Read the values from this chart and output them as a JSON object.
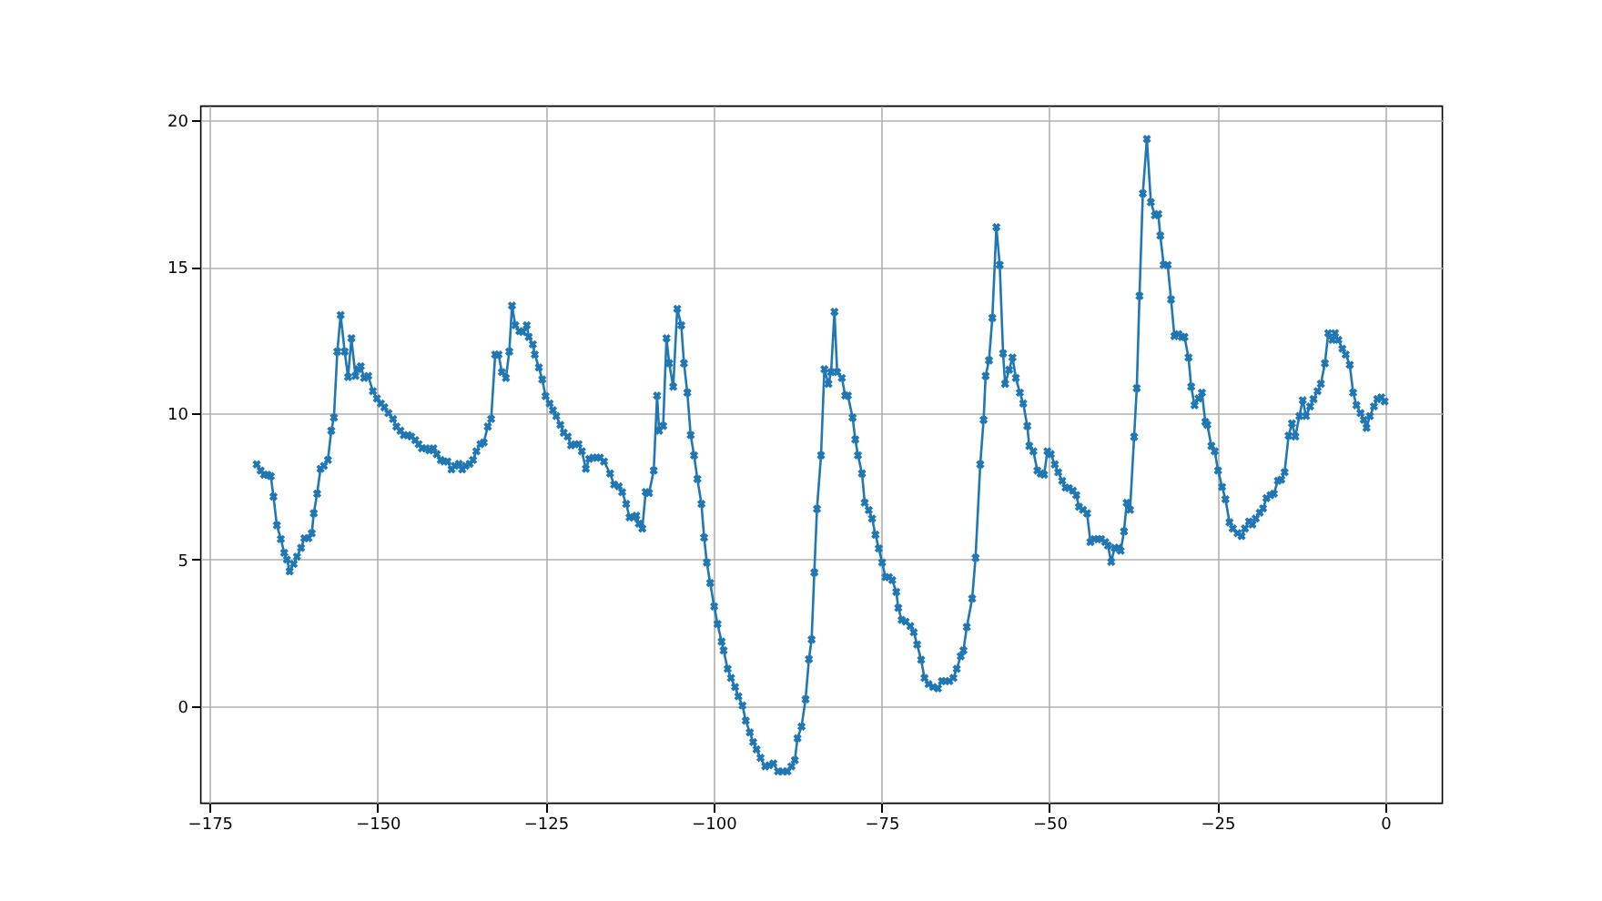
{
  "chart_data": {
    "type": "line",
    "marker": "cross",
    "line_style": "solid",
    "grid": true,
    "xlim": [
      -176.4,
      8.4
    ],
    "ylim": [
      -3.3,
      20.5
    ],
    "xticks": [
      -175,
      -150,
      -125,
      -100,
      -75,
      -50,
      -25,
      0
    ],
    "yticks": [
      0,
      5,
      10,
      15,
      20
    ],
    "series": [
      {
        "color": "#1f77b4",
        "x": [
          -168.0,
          -167.4,
          -166.9,
          -166.4,
          -165.9,
          -165.5,
          -165.0,
          -164.4,
          -163.9,
          -163.5,
          -163.1,
          -162.5,
          -162.0,
          -161.4,
          -160.9,
          -160.3,
          -159.8,
          -159.5,
          -159.0,
          -158.5,
          -158.0,
          -157.4,
          -156.9,
          -156.5,
          -156.0,
          -155.5,
          -154.9,
          -154.4,
          -153.9,
          -153.3,
          -152.9,
          -152.5,
          -152.0,
          -151.4,
          -150.7,
          -150.1,
          -149.5,
          -149.0,
          -148.4,
          -147.7,
          -147.2,
          -146.6,
          -146.1,
          -145.5,
          -145.0,
          -144.4,
          -143.9,
          -143.4,
          -142.8,
          -142.3,
          -141.7,
          -141.2,
          -140.6,
          -140.1,
          -139.6,
          -139.0,
          -138.5,
          -137.9,
          -137.4,
          -136.9,
          -136.3,
          -135.8,
          -135.3,
          -134.7,
          -134.2,
          -133.6,
          -133.1,
          -132.5,
          -132.0,
          -131.5,
          -130.9,
          -130.4,
          -130.0,
          -129.5,
          -128.9,
          -128.4,
          -127.8,
          -127.5,
          -126.9,
          -126.6,
          -126.0,
          -125.5,
          -125.0,
          -124.4,
          -123.9,
          -123.4,
          -122.8,
          -122.3,
          -121.7,
          -121.2,
          -120.6,
          -120.1,
          -119.6,
          -119.0,
          -118.5,
          -117.9,
          -117.4,
          -116.9,
          -116.3,
          -115.4,
          -114.8,
          -114.1,
          -113.6,
          -113.0,
          -112.5,
          -111.9,
          -111.5,
          -111.1,
          -110.6,
          -110.1,
          -109.6,
          -108.9,
          -108.4,
          -108.1,
          -107.5,
          -107.0,
          -106.6,
          -106.0,
          -105.4,
          -104.8,
          -104.4,
          -103.9,
          -103.4,
          -102.9,
          -102.4,
          -101.8,
          -101.4,
          -101.0,
          -100.5,
          -99.9,
          -99.4,
          -98.8,
          -98.5,
          -97.9,
          -97.4,
          -96.8,
          -96.3,
          -95.7,
          -95.2,
          -94.6,
          -94.1,
          -93.6,
          -93.0,
          -92.3,
          -91.7,
          -91.1,
          -90.4,
          -89.7,
          -89.0,
          -88.4,
          -87.9,
          -87.5,
          -86.9,
          -86.3,
          -85.8,
          -85.4,
          -85.0,
          -84.6,
          -84.0,
          -83.5,
          -82.9,
          -82.5,
          -82.0,
          -81.6,
          -80.9,
          -80.4,
          -80.0,
          -79.3,
          -78.9,
          -78.5,
          -77.9,
          -77.5,
          -76.9,
          -76.4,
          -75.9,
          -75.4,
          -74.9,
          -74.4,
          -73.9,
          -73.4,
          -72.8,
          -72.5,
          -72.0,
          -71.4,
          -70.7,
          -70.2,
          -69.7,
          -69.1,
          -68.6,
          -68.0,
          -67.3,
          -66.6,
          -66.0,
          -65.5,
          -64.9,
          -64.3,
          -63.8,
          -63.2,
          -62.8,
          -62.3,
          -61.5,
          -61.0,
          -60.3,
          -59.8,
          -59.5,
          -59.0,
          -58.5,
          -57.9,
          -57.4,
          -56.9,
          -56.6,
          -56.0,
          -55.5,
          -55.0,
          -54.4,
          -53.9,
          -53.3,
          -53.0,
          -52.4,
          -51.8,
          -51.3,
          -50.8,
          -50.3,
          -49.8,
          -49.2,
          -48.7,
          -48.1,
          -47.6,
          -47.1,
          -46.5,
          -46.0,
          -45.6,
          -45.0,
          -44.4,
          -43.9,
          -43.3,
          -42.8,
          -42.3,
          -41.7,
          -41.3,
          -40.8,
          -40.3,
          -39.7,
          -39.4,
          -38.9,
          -38.5,
          -38.0,
          -37.4,
          -37.0,
          -36.6,
          -36.1,
          -35.5,
          -34.9,
          -34.3,
          -33.8,
          -33.5,
          -33.0,
          -32.4,
          -31.9,
          -31.4,
          -30.8,
          -30.3,
          -29.9,
          -29.3,
          -28.9,
          -28.4,
          -27.8,
          -27.3,
          -26.8,
          -26.5,
          -25.9,
          -25.4,
          -24.9,
          -24.3,
          -23.8,
          -23.2,
          -22.7,
          -22.0,
          -21.4,
          -20.9,
          -20.3,
          -19.8,
          -19.3,
          -18.7,
          -18.2,
          -17.7,
          -17.1,
          -16.6,
          -16.0,
          -15.5,
          -15.0,
          -14.4,
          -13.9,
          -13.4,
          -12.8,
          -12.3,
          -11.8,
          -11.2,
          -10.7,
          -10.1,
          -9.6,
          -9.0,
          -8.5,
          -7.9,
          -7.5,
          -7.0,
          -6.4,
          -5.9,
          -5.3,
          -4.8,
          -4.3,
          -3.7,
          -3.2,
          -2.8,
          -2.3,
          -1.7,
          -1.2,
          -0.6,
          -0.1
        ],
        "values": [
          8.25,
          8.04,
          7.9,
          7.9,
          7.85,
          7.15,
          6.17,
          5.7,
          5.23,
          5.0,
          4.6,
          4.85,
          5.1,
          5.4,
          5.73,
          5.73,
          5.9,
          6.58,
          7.25,
          8.1,
          8.2,
          8.4,
          9.4,
          9.85,
          12.1,
          13.35,
          12.1,
          11.23,
          12.56,
          11.27,
          11.5,
          11.6,
          11.2,
          11.27,
          10.75,
          10.5,
          10.33,
          10.2,
          10.0,
          9.8,
          9.54,
          9.4,
          9.25,
          9.25,
          9.2,
          9.08,
          8.94,
          8.8,
          8.8,
          8.73,
          8.8,
          8.6,
          8.4,
          8.35,
          8.35,
          8.08,
          8.2,
          8.27,
          8.08,
          8.2,
          8.27,
          8.4,
          8.7,
          8.94,
          9.0,
          9.54,
          9.8,
          12.0,
          12.0,
          11.4,
          11.2,
          12.1,
          13.67,
          13.0,
          12.8,
          12.77,
          13.0,
          12.6,
          12.35,
          12.0,
          11.56,
          11.15,
          10.58,
          10.33,
          10.1,
          9.9,
          9.6,
          9.33,
          9.2,
          8.9,
          8.94,
          8.94,
          8.7,
          8.1,
          8.44,
          8.48,
          8.48,
          8.48,
          8.35,
          7.94,
          7.56,
          7.5,
          7.3,
          6.9,
          6.44,
          6.44,
          6.5,
          6.23,
          6.06,
          7.31,
          7.27,
          8.04,
          10.6,
          9.4,
          9.56,
          12.56,
          11.7,
          10.9,
          13.56,
          13.0,
          11.7,
          10.7,
          9.25,
          8.56,
          7.75,
          6.9,
          5.75,
          4.9,
          4.2,
          3.4,
          2.8,
          2.2,
          1.9,
          1.27,
          0.96,
          0.65,
          0.33,
          0.02,
          -0.5,
          -0.9,
          -1.23,
          -1.48,
          -1.77,
          -2.06,
          -2.02,
          -1.96,
          -2.23,
          -2.23,
          -2.23,
          -2.06,
          -1.85,
          -1.1,
          -0.7,
          0.23,
          1.6,
          2.27,
          4.56,
          6.73,
          8.56,
          11.5,
          11.0,
          11.4,
          13.46,
          11.4,
          11.2,
          10.6,
          10.6,
          9.85,
          9.1,
          8.56,
          7.94,
          6.94,
          6.69,
          6.4,
          5.85,
          5.38,
          4.9,
          4.4,
          4.4,
          4.3,
          3.9,
          3.35,
          2.94,
          2.88,
          2.73,
          2.52,
          2.1,
          1.58,
          0.96,
          0.75,
          0.65,
          0.6,
          0.85,
          0.85,
          0.85,
          0.96,
          1.27,
          1.7,
          1.9,
          2.7,
          3.67,
          5.06,
          8.25,
          9.77,
          11.27,
          11.8,
          13.25,
          16.35,
          15.06,
          12.04,
          11.0,
          11.48,
          11.9,
          11.2,
          10.7,
          10.33,
          9.56,
          8.88,
          8.7,
          8.04,
          7.94,
          7.9,
          8.7,
          8.6,
          8.25,
          7.98,
          7.69,
          7.46,
          7.44,
          7.35,
          7.2,
          6.8,
          6.7,
          6.58,
          5.6,
          5.7,
          5.7,
          5.7,
          5.6,
          5.48,
          4.92,
          5.4,
          5.4,
          5.3,
          5.96,
          6.94,
          6.7,
          9.19,
          10.85,
          14.0,
          17.5,
          19.36,
          17.2,
          16.75,
          16.8,
          16.06,
          15.06,
          15.06,
          13.88,
          12.63,
          12.7,
          12.6,
          12.6,
          11.9,
          10.9,
          10.27,
          10.5,
          10.7,
          9.7,
          9.6,
          8.88,
          8.7,
          8.04,
          7.48,
          7.06,
          6.27,
          6.06,
          5.9,
          5.8,
          6.06,
          6.3,
          6.2,
          6.4,
          6.6,
          6.75,
          7.1,
          7.2,
          7.25,
          7.69,
          7.73,
          7.98,
          9.23,
          9.65,
          9.2,
          9.9,
          10.44,
          9.9,
          10.23,
          10.48,
          10.75,
          11.0,
          11.7,
          12.73,
          12.5,
          12.73,
          12.5,
          12.2,
          12.0,
          11.65,
          10.7,
          10.27,
          10.0,
          9.77,
          9.5,
          9.9,
          10.23,
          10.48,
          10.54,
          10.4
        ]
      }
    ]
  }
}
